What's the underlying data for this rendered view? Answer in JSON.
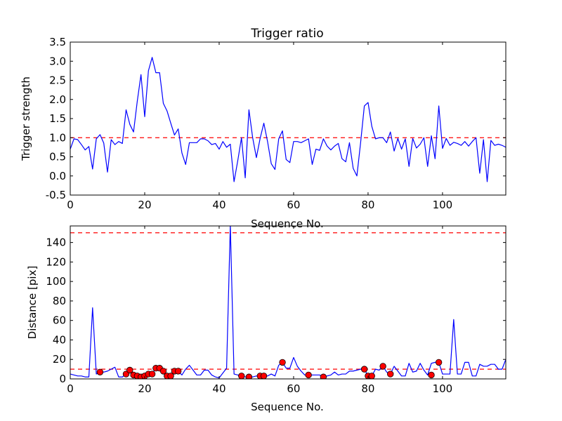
{
  "figure": {
    "background": "#ffffff"
  },
  "chart_data": [
    {
      "type": "line",
      "title": "Trigger ratio",
      "xlabel": "Sequence No.",
      "ylabel": "Trigger strength",
      "xlim": [
        0,
        117
      ],
      "ylim": [
        -0.5,
        3.5
      ],
      "xticks": [
        0,
        20,
        40,
        60,
        80,
        100
      ],
      "yticks": [
        -0.5,
        0.0,
        0.5,
        1.0,
        1.5,
        2.0,
        2.5,
        3.0,
        3.5
      ],
      "ytick_decimals": 1,
      "grid": false,
      "threshold": {
        "value": 1.0,
        "color": "#ff0000",
        "style": "dashed"
      },
      "series": [
        {
          "name": "trigger strength",
          "color": "#0000ff",
          "x": [
            0,
            1,
            2,
            3,
            4,
            5,
            6,
            7,
            8,
            9,
            10,
            11,
            12,
            13,
            14,
            15,
            16,
            17,
            18,
            19,
            20,
            21,
            22,
            23,
            24,
            25,
            26,
            27,
            28,
            29,
            30,
            31,
            32,
            33,
            34,
            35,
            36,
            37,
            38,
            39,
            40,
            41,
            42,
            43,
            44,
            45,
            46,
            47,
            48,
            49,
            50,
            51,
            52,
            53,
            54,
            55,
            56,
            57,
            58,
            59,
            60,
            61,
            62,
            63,
            64,
            65,
            66,
            67,
            68,
            69,
            70,
            71,
            72,
            73,
            74,
            75,
            76,
            77,
            78,
            79,
            80,
            81,
            82,
            83,
            84,
            85,
            86,
            87,
            88,
            89,
            90,
            91,
            92,
            93,
            94,
            95,
            96,
            97,
            98,
            99,
            100,
            101,
            102,
            103,
            104,
            105,
            106,
            107,
            108,
            109,
            110,
            111,
            112,
            113,
            114,
            115,
            116,
            117
          ],
          "y": [
            0.7,
            0.97,
            0.95,
            0.82,
            0.68,
            0.77,
            0.18,
            0.97,
            1.08,
            0.86,
            0.1,
            0.95,
            0.82,
            0.9,
            0.85,
            1.73,
            1.35,
            1.15,
            1.95,
            2.65,
            1.55,
            2.75,
            3.1,
            2.7,
            2.7,
            1.9,
            1.7,
            1.38,
            1.07,
            1.23,
            0.6,
            0.3,
            0.87,
            0.87,
            0.87,
            0.97,
            0.97,
            0.92,
            0.82,
            0.85,
            0.7,
            0.9,
            0.75,
            0.83,
            -0.15,
            0.4,
            1.0,
            -0.05,
            1.73,
            1.0,
            0.48,
            0.98,
            1.38,
            0.9,
            0.32,
            0.17,
            0.97,
            1.18,
            0.43,
            0.35,
            0.9,
            0.9,
            0.87,
            0.92,
            0.97,
            0.3,
            0.7,
            0.67,
            0.97,
            0.78,
            0.68,
            0.78,
            0.85,
            0.45,
            0.37,
            0.87,
            0.2,
            0.0,
            0.87,
            1.83,
            1.92,
            1.3,
            0.97,
            1.0,
            1.0,
            0.87,
            1.15,
            0.65,
            0.98,
            0.7,
            0.97,
            0.25,
            0.98,
            0.73,
            0.83,
            1.0,
            0.25,
            1.05,
            0.45,
            1.83,
            0.72,
            0.98,
            0.8,
            0.88,
            0.85,
            0.8,
            0.9,
            0.78,
            0.9,
            1.0,
            0.07,
            0.95,
            -0.15,
            0.93,
            0.8,
            0.83,
            0.8,
            0.75
          ]
        }
      ]
    },
    {
      "type": "line",
      "title": "",
      "xlabel": "Sequence No.",
      "ylabel": "Distance [pix]",
      "xlim": [
        0,
        117
      ],
      "ylim": [
        0,
        157
      ],
      "xticks": [
        0,
        20,
        40,
        60,
        80,
        100
      ],
      "yticks": [
        0,
        20,
        40,
        60,
        80,
        100,
        120,
        140
      ],
      "ytick_decimals": 0,
      "grid": false,
      "thresholds": [
        {
          "value": 150,
          "color": "#ff0000",
          "style": "dashed"
        },
        {
          "value": 10,
          "color": "#ff0000",
          "style": "dashed"
        }
      ],
      "series": [
        {
          "name": "distance",
          "color": "#0000ff",
          "x": [
            0,
            1,
            2,
            3,
            4,
            5,
            6,
            7,
            8,
            9,
            10,
            11,
            12,
            13,
            14,
            15,
            16,
            17,
            18,
            19,
            20,
            21,
            22,
            23,
            24,
            25,
            26,
            27,
            28,
            29,
            30,
            31,
            32,
            33,
            34,
            35,
            36,
            37,
            38,
            39,
            40,
            41,
            42,
            43,
            44,
            45,
            46,
            47,
            48,
            49,
            50,
            51,
            52,
            53,
            54,
            55,
            56,
            57,
            58,
            59,
            60,
            61,
            62,
            63,
            64,
            65,
            66,
            67,
            68,
            69,
            70,
            71,
            72,
            73,
            74,
            75,
            76,
            77,
            78,
            79,
            80,
            81,
            82,
            83,
            84,
            85,
            86,
            87,
            88,
            89,
            90,
            91,
            92,
            93,
            94,
            95,
            96,
            97,
            98,
            99,
            100,
            101,
            102,
            103,
            104,
            105,
            106,
            107,
            108,
            109,
            110,
            111,
            112,
            113,
            114,
            115,
            116,
            117
          ],
          "y": [
            5,
            4,
            3,
            3,
            2,
            2,
            73,
            5,
            7,
            7,
            8,
            10,
            12,
            2,
            2,
            5,
            9,
            4,
            3,
            2,
            3,
            5,
            5,
            11,
            11,
            8,
            3,
            3,
            8,
            8,
            4,
            10,
            14,
            9,
            4,
            4,
            9,
            9,
            4,
            2,
            1,
            6,
            11,
            158,
            5,
            4,
            3,
            2,
            2,
            2,
            3,
            2,
            3,
            3,
            5,
            3,
            14,
            17,
            11,
            11,
            22,
            13,
            8,
            4,
            4,
            4,
            4,
            4,
            2,
            3,
            4,
            7,
            4,
            5,
            5,
            8,
            8,
            9,
            10,
            10,
            3,
            3,
            10,
            9,
            13,
            7,
            5,
            13,
            8,
            3,
            3,
            16,
            7,
            8,
            16,
            9,
            4,
            16,
            17,
            17,
            5,
            5,
            5,
            61,
            5,
            5,
            17,
            17,
            3,
            3,
            15,
            13,
            13,
            15,
            15,
            10,
            10,
            20
          ]
        },
        {
          "name": "flagged points",
          "kind": "markers",
          "color": "#ff0000",
          "x": [
            8,
            15,
            16,
            17,
            18,
            19,
            20,
            21,
            22,
            23,
            24,
            25,
            26,
            27,
            28,
            29,
            46,
            48,
            51,
            52,
            57,
            64,
            68,
            79,
            80,
            81,
            84,
            86,
            97,
            99
          ],
          "y": [
            7,
            5,
            9,
            4,
            3,
            2,
            3,
            5,
            5,
            11,
            11,
            8,
            3,
            3,
            8,
            8,
            3,
            2,
            3,
            3,
            17,
            4,
            2,
            10,
            3,
            3,
            13,
            5,
            4,
            17
          ]
        }
      ]
    }
  ]
}
